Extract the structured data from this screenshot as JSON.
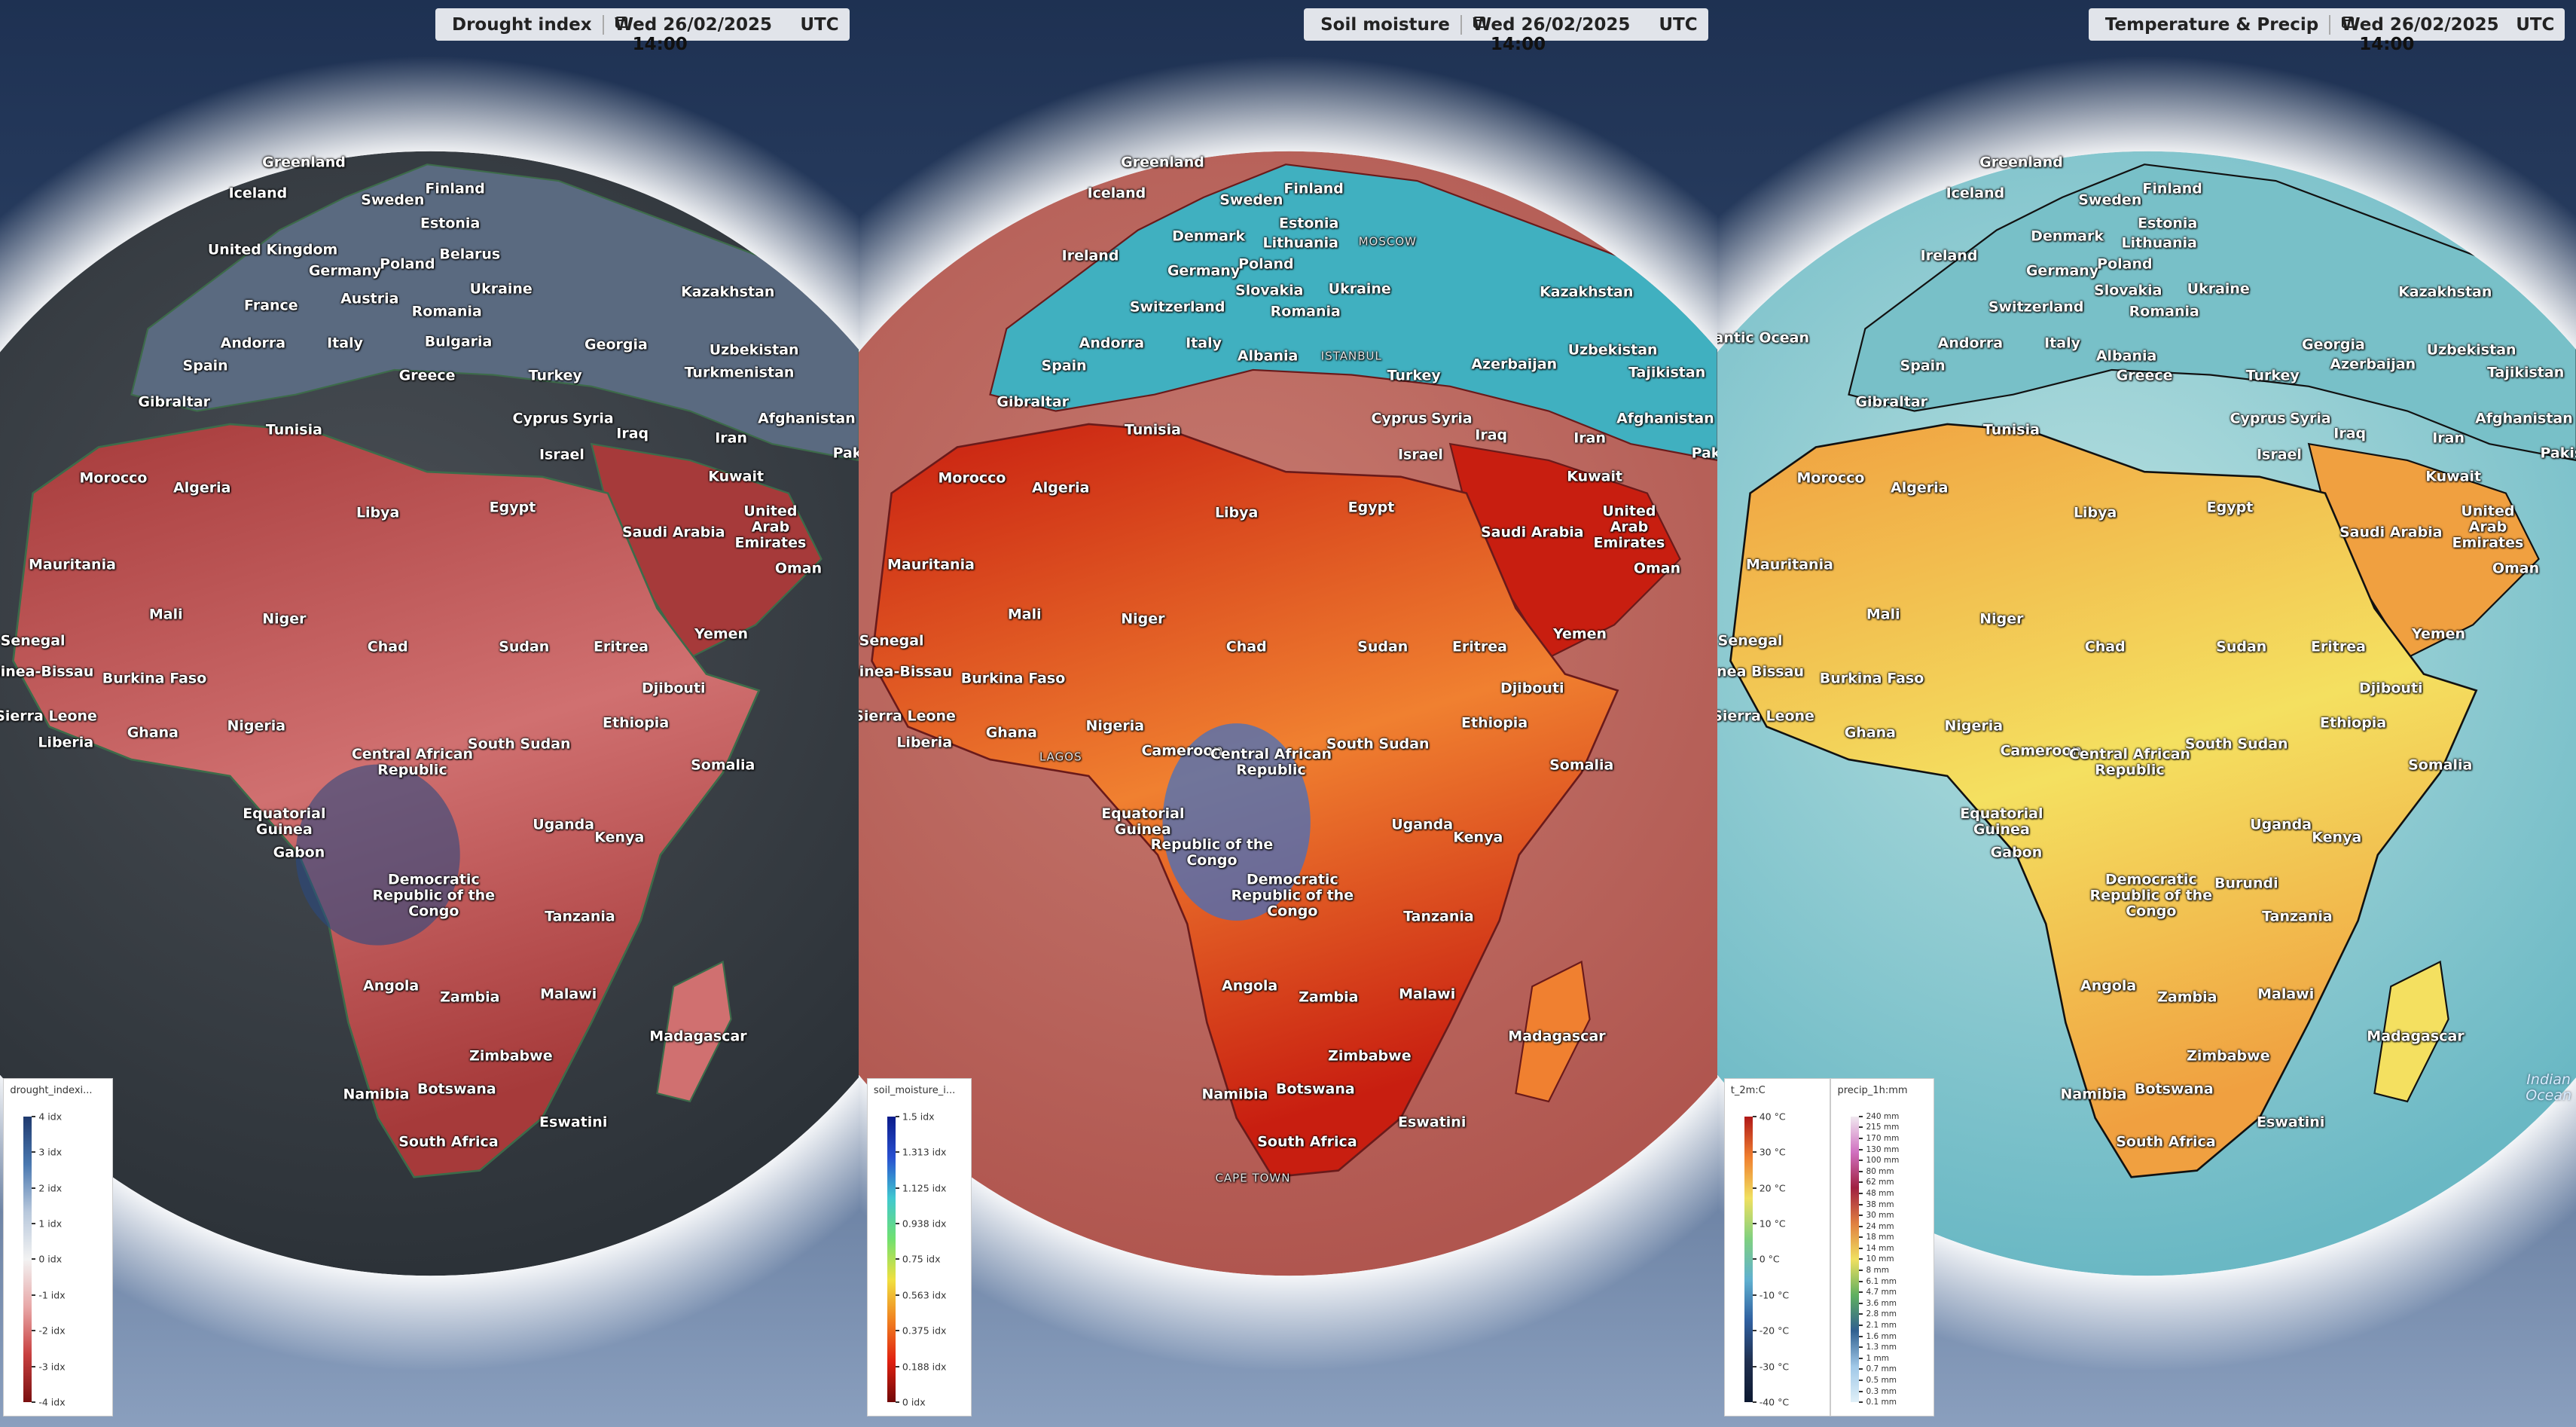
{
  "panels": [
    {
      "title": "Drought index",
      "date": "Wed 26/02/2025",
      "time": "14:00",
      "timezone": "UTC",
      "legends": [
        {
          "name": "drought_indexi...",
          "colors": [
            "#1f3a6e",
            "#4a78b0",
            "#b8c8dc",
            "#f2f2f2",
            "#e8a8a8",
            "#c84040",
            "#7a1010"
          ],
          "ticks": [
            {
              "value": 4,
              "label": "4 idx"
            },
            {
              "value": 3,
              "label": "3 idx"
            },
            {
              "value": 2,
              "label": "2 idx"
            },
            {
              "value": 1,
              "label": "1 idx"
            },
            {
              "value": 0,
              "label": "0 idx"
            },
            {
              "value": -1,
              "label": "-1 idx"
            },
            {
              "value": -2,
              "label": "-2 idx"
            },
            {
              "value": -3,
              "label": "-3 idx"
            },
            {
              "value": -4,
              "label": "-4 idx"
            }
          ]
        }
      ],
      "labels": [
        "Greenland",
        "Iceland",
        "Sweden",
        "Finland",
        "Estonia",
        "United Kingdom",
        "Belarus",
        "Germany",
        "Poland",
        "Ukraine",
        "Kazakhstan",
        "France",
        "Austria",
        "Romania",
        "Andorra",
        "Italy",
        "Bulgaria",
        "Georgia",
        "Uzbekistan",
        "Spain",
        "Greece",
        "Turkey",
        "Turkmenistan",
        "Gibraltar",
        "Cyprus",
        "Syria",
        "Afghanistan",
        "Tunisia",
        "Iraq",
        "Israel",
        "Iran",
        "Pakistan",
        "Morocco",
        "Algeria",
        "Kuwait",
        "Libya",
        "Egypt",
        "Saudi Arabia",
        "United Arab Emirates",
        "Oman",
        "Mauritania",
        "Mali",
        "Niger",
        "Yemen",
        "Senegal",
        "Chad",
        "Sudan",
        "Eritrea",
        "Guinea-Bissau",
        "Burkina Faso",
        "Djibouti",
        "Sierra Leone",
        "Nigeria",
        "Ethiopia",
        "Ghana",
        "Liberia",
        "South Sudan",
        "Central African Republic",
        "Somalia",
        "Equatorial Guinea",
        "Uganda",
        "Kenya",
        "Gabon",
        "Democratic Republic of the Congo",
        "Tanzania",
        "Angola",
        "Zambia",
        "Malawi",
        "Madagascar",
        "Zimbabwe",
        "Namibia",
        "Botswana",
        "Eswatini",
        "South Africa"
      ]
    },
    {
      "title": "Soil moisture",
      "date": "Wed 26/02/2025",
      "time": "14:00",
      "timezone": "UTC",
      "legends": [
        {
          "name": "soil_moisture_i...",
          "colors": [
            "#0a1a8a",
            "#2850d0",
            "#40c8d0",
            "#70e070",
            "#f0e040",
            "#f08020",
            "#e02010",
            "#700808"
          ],
          "ticks": [
            {
              "value": 1.5,
              "label": "1.5 idx"
            },
            {
              "value": 1.313,
              "label": "1.313 idx"
            },
            {
              "value": 1.125,
              "label": "1.125 idx"
            },
            {
              "value": 0.938,
              "label": "0.938 idx"
            },
            {
              "value": 0.75,
              "label": "0.75 idx"
            },
            {
              "value": 0.563,
              "label": "0.563 idx"
            },
            {
              "value": 0.375,
              "label": "0.375 idx"
            },
            {
              "value": 0.188,
              "label": "0.188 idx"
            },
            {
              "value": 0,
              "label": "0 idx"
            }
          ]
        }
      ],
      "labels": [
        "Greenland",
        "Iceland",
        "Sweden",
        "Finland",
        "Denmark",
        "Estonia",
        "Ireland",
        "Lithuania",
        "MOSCOW",
        "Germany",
        "Poland",
        "Slovakia",
        "Ukraine",
        "Kazakhstan",
        "Switzerland",
        "Romania",
        "Andorra",
        "Italy",
        "Albania",
        "ISTANBUL",
        "Azerbaijan",
        "Uzbekistan",
        "Spain",
        "Turkey",
        "Tajikistan",
        "Gibraltar",
        "Cyprus",
        "Syria",
        "Afghanistan",
        "Tunisia",
        "Iraq",
        "Israel",
        "Iran",
        "Pakistan",
        "Morocco",
        "Algeria",
        "Kuwait",
        "Libya",
        "Egypt",
        "Saudi Arabia",
        "United Arab Emirates",
        "Oman",
        "Mauritania",
        "Mali",
        "Niger",
        "Yemen",
        "Senegal",
        "Chad",
        "Sudan",
        "Eritrea",
        "Guinea-Bissau",
        "Burkina Faso",
        "Djibouti",
        "Sierra Leone",
        "Nigeria",
        "Ethiopia",
        "Ghana",
        "Liberia",
        "LAGOS",
        "Cameroon",
        "Central African Republic",
        "South Sudan",
        "Somalia",
        "Equatorial Guinea",
        "Uganda",
        "Kenya",
        "Republic of the Congo",
        "Democratic Republic of the Congo",
        "Tanzania",
        "Angola",
        "Zambia",
        "Malawi",
        "Madagascar",
        "Zimbabwe",
        "Namibia",
        "Botswana",
        "Eswatini",
        "South Africa",
        "CAPE TOWN"
      ]
    },
    {
      "title": "Temperature & Precip",
      "date": "Wed 26/02/2025",
      "time": "14:00",
      "timezone": "UTC",
      "legends": [
        {
          "name": "t_2m:C",
          "colors": [
            "#b01818",
            "#f08030",
            "#f0e060",
            "#80d080",
            "#60b0d0",
            "#3060a0",
            "#203050",
            "#0c1830"
          ],
          "ticks": [
            {
              "value": 40,
              "label": "40 °C"
            },
            {
              "value": 30,
              "label": "30 °C"
            },
            {
              "value": 20,
              "label": "20 °C"
            },
            {
              "value": 10,
              "label": "10 °C"
            },
            {
              "value": 0,
              "label": "0 °C"
            },
            {
              "value": -10,
              "label": "-10 °C"
            },
            {
              "value": -20,
              "label": "-20 °C"
            },
            {
              "value": -30,
              "label": "-30 °C"
            },
            {
              "value": -40,
              "label": "-40 °C"
            }
          ]
        },
        {
          "name": "precip_1h:mm",
          "colors": [
            "#f0e8f0",
            "#d070c0",
            "#a02040",
            "#e08040",
            "#f0e060",
            "#60b060",
            "#306090",
            "#a0c8e8",
            "#e0f0f8"
          ],
          "ticks": [
            {
              "value": 240,
              "label": "240 mm"
            },
            {
              "value": 215,
              "label": "215 mm"
            },
            {
              "value": 170,
              "label": "170 mm"
            },
            {
              "value": 130,
              "label": "130 mm"
            },
            {
              "value": 100,
              "label": "100 mm"
            },
            {
              "value": 80,
              "label": "80 mm"
            },
            {
              "value": 62,
              "label": "62 mm"
            },
            {
              "value": 48,
              "label": "48 mm"
            },
            {
              "value": 38,
              "label": "38 mm"
            },
            {
              "value": 30,
              "label": "30 mm"
            },
            {
              "value": 24,
              "label": "24 mm"
            },
            {
              "value": 18,
              "label": "18 mm"
            },
            {
              "value": 14,
              "label": "14 mm"
            },
            {
              "value": 10,
              "label": "10 mm"
            },
            {
              "value": 8,
              "label": "8 mm"
            },
            {
              "value": 6.1,
              "label": "6.1 mm"
            },
            {
              "value": 4.7,
              "label": "4.7 mm"
            },
            {
              "value": 3.6,
              "label": "3.6 mm"
            },
            {
              "value": 2.8,
              "label": "2.8 mm"
            },
            {
              "value": 2.1,
              "label": "2.1 mm"
            },
            {
              "value": 1.6,
              "label": "1.6 mm"
            },
            {
              "value": 1.3,
              "label": "1.3 mm"
            },
            {
              "value": 1,
              "label": "1 mm"
            },
            {
              "value": 0.7,
              "label": "0.7 mm"
            },
            {
              "value": 0.5,
              "label": "0.5 mm"
            },
            {
              "value": 0.3,
              "label": "0.3 mm"
            },
            {
              "value": 0.1,
              "label": "0.1 mm"
            }
          ]
        }
      ],
      "labels": [
        "Greenland",
        "Iceland",
        "Sweden",
        "Finland",
        "Denmark",
        "Estonia",
        "Lithuania",
        "Ireland",
        "Germany",
        "Poland",
        "Slovakia",
        "Ukraine",
        "Kazakhstan",
        "Atlantic Ocean",
        "Switzerland",
        "Romania",
        "Andorra",
        "Italy",
        "Georgia",
        "Uzbekistan",
        "Albania",
        "Azerbaijan",
        "Spain",
        "Greece",
        "Turkey",
        "Tajikistan",
        "Gibraltar",
        "Cyprus",
        "Syria",
        "Afghanistan",
        "Tunisia",
        "Iraq",
        "Iran",
        "Pakistan",
        "Israel",
        "Morocco",
        "Algeria",
        "Kuwait",
        "Libya",
        "Egypt",
        "Saudi Arabia",
        "United Arab Emirates",
        "Oman",
        "Mauritania",
        "Mali",
        "Niger",
        "Yemen",
        "Senegal",
        "Guinea Bissau",
        "Burkina Faso",
        "Chad",
        "Sudan",
        "Eritrea",
        "Djibouti",
        "Sierra Leone",
        "Nigeria",
        "Ethiopia",
        "Ghana",
        "Cameroon",
        "South Sudan",
        "Central African Republic",
        "Somalia",
        "Equatorial Guinea",
        "Gabon",
        "Uganda",
        "Kenya",
        "Democratic Republic of the Congo",
        "Burundi",
        "Tanzania",
        "Angola",
        "Zambia",
        "Malawi",
        "Madagascar",
        "Zimbabwe",
        "Namibia",
        "Botswana",
        "Eswatini",
        "South Africa",
        "Indian Ocean"
      ]
    }
  ]
}
